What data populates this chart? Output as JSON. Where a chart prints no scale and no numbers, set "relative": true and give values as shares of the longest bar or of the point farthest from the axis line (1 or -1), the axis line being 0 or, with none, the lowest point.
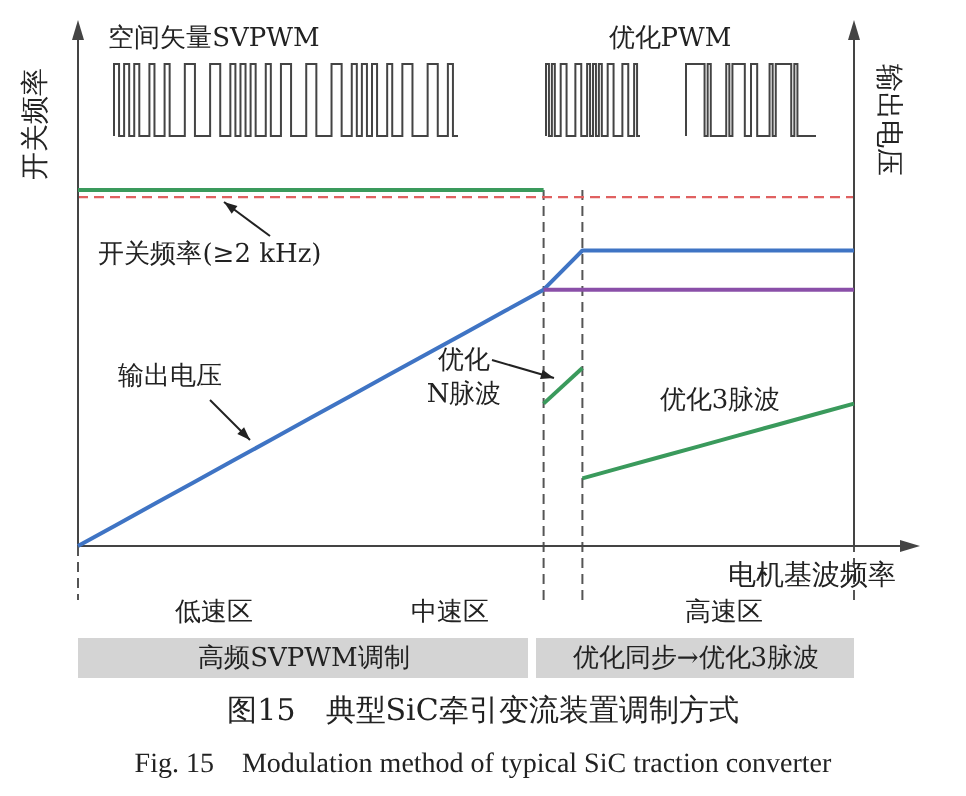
{
  "chart_data": {
    "type": "line",
    "relative": true,
    "title": "图15　典型SiC牵引变流装置调制方式",
    "subtitle": "Fig. 15　Modulation method of typical SiC traction converter",
    "xlabel": "电机基波频率",
    "ylabel": "开关频率",
    "y2label": "输出电压",
    "line_style": "solid",
    "grid": "x",
    "categories": [
      null,
      null,
      null,
      null,
      null,
      null,
      null,
      null,
      null,
      null,
      null,
      null,
      null,
      null,
      null,
      null,
      null,
      null,
      null,
      null,
      null
    ],
    "series": [
      {
        "color": "#3a9a5c",
        "values": [
          1,
          1,
          1,
          1,
          1,
          1,
          1,
          1,
          1,
          1,
          1,
          1,
          1,
          null,
          null,
          null,
          null,
          null,
          null,
          null,
          null
        ]
      },
      {
        "color": "#3a9a5c",
        "values": [
          null,
          null,
          null,
          null,
          null,
          null,
          null,
          null,
          null,
          null,
          null,
          null,
          0.4,
          0.5,
          null,
          null,
          null,
          null,
          null,
          null,
          null
        ]
      },
      {
        "color": "#3a9a5c",
        "values": [
          null,
          null,
          null,
          null,
          null,
          null,
          null,
          null,
          null,
          null,
          null,
          null,
          null,
          0.19,
          0.22,
          0.25,
          0.28,
          0.31,
          0.34,
          0.37,
          0.4
        ]
      },
      {
        "color": "#3f74c4",
        "values": [
          0,
          0.06,
          0.12,
          0.18,
          0.24,
          0.3,
          0.36,
          0.42,
          0.48,
          0.54,
          0.6,
          0.66,
          0.72,
          0.83,
          0.83,
          0.83,
          0.83,
          0.83,
          0.83,
          0.83,
          0.83
        ]
      },
      {
        "color": "#8a4fa8",
        "values": [
          null,
          null,
          null,
          null,
          null,
          null,
          null,
          null,
          null,
          null,
          null,
          null,
          0.72,
          0.72,
          0.72,
          0.72,
          0.72,
          0.72,
          0.72,
          0.72,
          0.72
        ]
      }
    ],
    "ref_lines": [
      {
        "axis": "y",
        "value": 0.98,
        "color": "#e06060",
        "line_style": "dashed"
      }
    ],
    "annotations": [
      "开关频率(≥2 kHz)",
      "输出电压",
      "优化\nN脉波",
      "优化3脉波",
      "空间矢量SVPWM",
      "优化PWM",
      "低速区",
      "中速区",
      "高速区",
      "高频SVPWM调制",
      "优化同步→优化3脉波"
    ]
  }
}
